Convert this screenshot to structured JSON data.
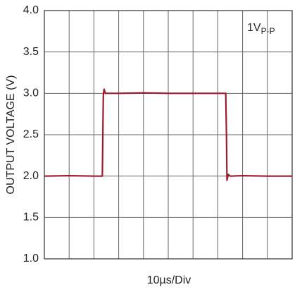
{
  "chart_data": {
    "type": "line",
    "x_label": "10µs/Div",
    "y_label": "OUTPUT VOLTAGE (V)",
    "annotation": {
      "text": "1V",
      "subscript": "P-P"
    },
    "x": [
      0,
      10,
      20,
      23.4,
      23.8,
      24.1,
      24.6,
      30,
      40,
      50,
      60,
      70,
      73.2,
      73.5,
      73.7,
      74.2,
      75,
      80,
      90,
      100
    ],
    "series": [
      {
        "color": "#9b1b30",
        "values": [
          2.0,
          2.005,
          2.0,
          2.0,
          2.98,
          3.05,
          3.0,
          3.0,
          3.005,
          3.0,
          3.0,
          3.0,
          3.0,
          2.5,
          1.95,
          2.02,
          2.0,
          2.005,
          2.0,
          2.0
        ]
      }
    ],
    "xlim": [
      0,
      100
    ],
    "xticks": [
      0,
      10,
      20,
      30,
      40,
      50,
      60,
      70,
      80,
      90,
      100
    ],
    "ylim": [
      1,
      4
    ],
    "yticks": [
      {
        "value": 1,
        "label": "1.0"
      },
      1.5,
      {
        "value": 2,
        "label": "2.0"
      },
      2.5,
      {
        "value": 3,
        "label": "3.0"
      },
      3.5,
      {
        "value": 4,
        "label": "4.0"
      }
    ],
    "grid": true
  }
}
